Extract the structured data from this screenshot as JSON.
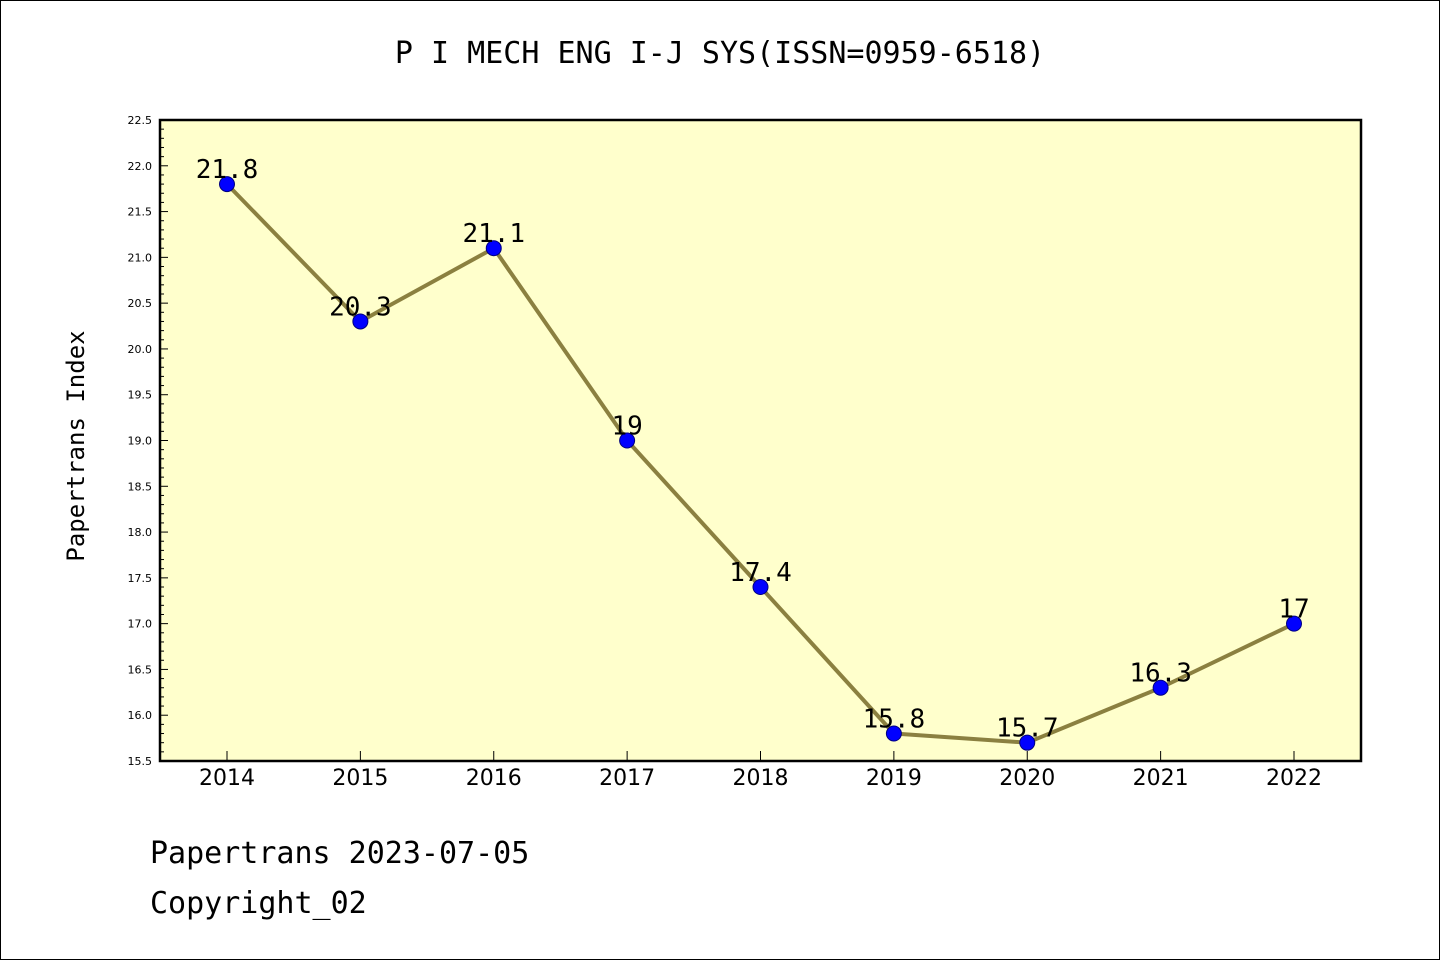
{
  "colors": {
    "plot_background": "#ffffcc",
    "line": "#8b8040",
    "marker_fill": "#0000ff",
    "marker_stroke": "#000080"
  },
  "chart_data": {
    "type": "line",
    "title": "P I MECH ENG I-J SYS(ISSN=0959-6518)",
    "xlabel": "",
    "ylabel": "Papertrans Index",
    "categories": [
      "2014",
      "2015",
      "2016",
      "2017",
      "2018",
      "2019",
      "2020",
      "2021",
      "2022"
    ],
    "values": [
      21.8,
      20.3,
      21.1,
      19,
      17.4,
      15.8,
      15.7,
      16.3,
      17
    ],
    "data_labels": [
      "21.8",
      "20.3",
      "21.1",
      "19",
      "17.4",
      "15.8",
      "15.7",
      "16.3",
      "17"
    ],
    "ylim": [
      15.5,
      22.5
    ],
    "yticks": [
      "15.5",
      "16.0",
      "16.5",
      "17.0",
      "17.5",
      "18.0",
      "18.5",
      "19.0",
      "19.5",
      "20.0",
      "20.5",
      "21.0",
      "21.5",
      "22.0",
      "22.5"
    ],
    "grid": false,
    "legend": "none"
  },
  "footer": {
    "source": "Papertrans 2023-07-05",
    "copyright": "Copyright_02"
  }
}
